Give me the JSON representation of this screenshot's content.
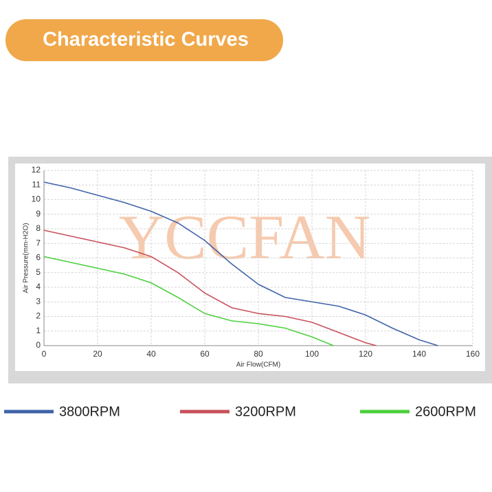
{
  "chart_data": {
    "type": "line",
    "title": "Characteristic Curves",
    "watermark": "YCCFAN",
    "x_label": "Air Flow(CFM)",
    "y_label": "Air Pressure(mm-H2O)",
    "xlim": [
      0,
      160
    ],
    "ylim": [
      0,
      12
    ],
    "xticks": [
      0,
      20,
      40,
      60,
      80,
      100,
      120,
      140,
      160
    ],
    "yticks": [
      0,
      1,
      2,
      3,
      4,
      5,
      6,
      7,
      8,
      9,
      10,
      11,
      12
    ],
    "grid": true,
    "series": [
      {
        "name": "3800RPM",
        "color": "#3f63a8",
        "x": [
          0,
          10,
          20,
          30,
          40,
          50,
          60,
          70,
          80,
          90,
          100,
          110,
          120,
          130,
          140,
          147
        ],
        "values": [
          11.2,
          10.8,
          10.3,
          9.8,
          9.2,
          8.4,
          7.2,
          5.6,
          4.2,
          3.3,
          3.0,
          2.7,
          2.1,
          1.2,
          0.4,
          0
        ]
      },
      {
        "name": "3200RPM",
        "color": "#c8505a",
        "x": [
          0,
          10,
          20,
          30,
          40,
          50,
          60,
          70,
          80,
          90,
          100,
          110,
          120,
          124
        ],
        "values": [
          7.9,
          7.5,
          7.1,
          6.7,
          6.1,
          5.0,
          3.6,
          2.6,
          2.2,
          2.0,
          1.6,
          0.9,
          0.2,
          0
        ]
      },
      {
        "name": "2600RPM",
        "color": "#4ccf3c",
        "x": [
          0,
          10,
          20,
          30,
          40,
          50,
          60,
          70,
          80,
          90,
          100,
          108
        ],
        "values": [
          6.1,
          5.7,
          5.3,
          4.9,
          4.3,
          3.3,
          2.2,
          1.7,
          1.5,
          1.2,
          0.6,
          0
        ]
      }
    ]
  }
}
